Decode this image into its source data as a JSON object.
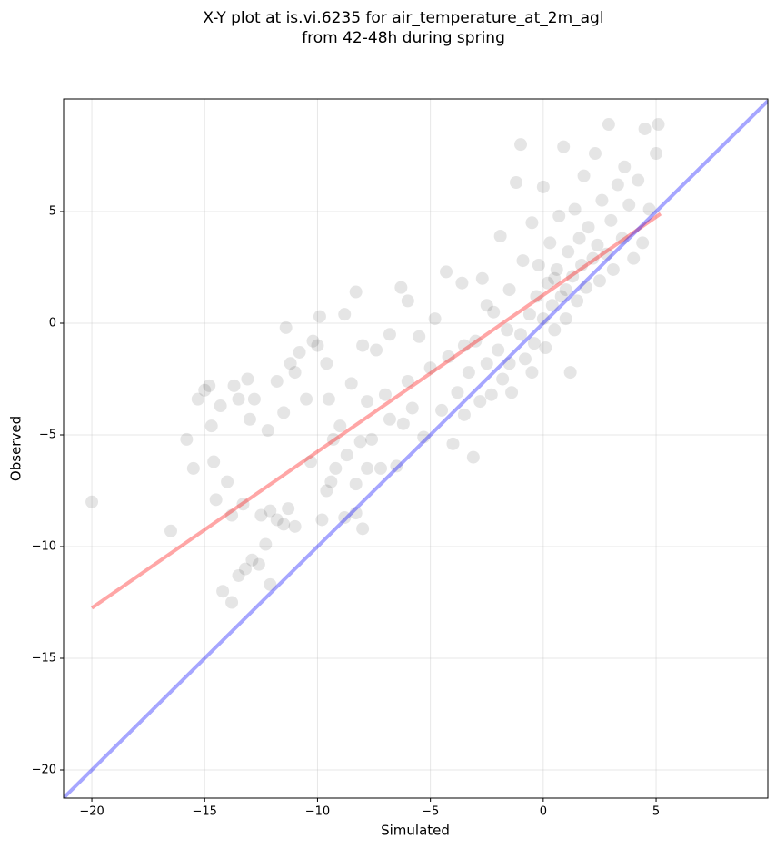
{
  "chart_data": {
    "type": "scatter",
    "title": [
      "X-Y plot at is.vi.6235 for air_temperature_at_2m_agl",
      "from 42-48h during spring"
    ],
    "x_label": "Simulated",
    "y_label": "Observed",
    "xlim": [
      -21.25,
      9.95
    ],
    "ylim": [
      -21.26,
      10.04
    ],
    "xticks": [
      {
        "value": -20,
        "label": "−20"
      },
      {
        "value": -15,
        "label": "−15"
      },
      {
        "value": -10,
        "label": "−10"
      },
      {
        "value": -5,
        "label": "−5"
      },
      0,
      5
    ],
    "yticks": [
      {
        "value": -20,
        "label": "−20"
      },
      {
        "value": -15,
        "label": "−15"
      },
      {
        "value": -10,
        "label": "−10"
      },
      {
        "value": -5,
        "label": "−5"
      },
      0,
      5
    ],
    "grid": true,
    "series": [
      {
        "color": "#000000",
        "x": [
          -20,
          -16.5,
          -15.8,
          -15.5,
          -15.3,
          -15,
          -14.8,
          -14.7,
          -14.6,
          -14.5,
          -14.3,
          -14,
          -13.8,
          -13.7,
          -13.5,
          -13.3,
          -13.1,
          -13,
          -12.8,
          -13.8,
          -14.2,
          -13.5,
          -13.2,
          -12.9,
          -12.6,
          -12.3,
          -12.1,
          -12.5,
          -12.1,
          -11.8,
          -11.5,
          -11.3,
          -11,
          -12.2,
          -11.8,
          -11.5,
          -11.2,
          -11,
          -11.4,
          -10.8,
          -10.5,
          -10.3,
          -10.2,
          -10,
          -9.9,
          -9.6,
          -9.5,
          -9.3,
          -9.8,
          -9.6,
          -9.4,
          -9.2,
          -9,
          -8.8,
          -8.7,
          -8.5,
          -8.3,
          -8.1,
          -8.3,
          -8,
          -8.8,
          -8.3,
          -8,
          -7.8,
          -7.6,
          -7.4,
          -7.2,
          -7,
          -6.8,
          -6.5,
          -6.3,
          -6.2,
          -6,
          -6,
          -5.8,
          -5.5,
          -5.3,
          -5,
          -4.8,
          -4.5,
          -4.3,
          -4.2,
          -4,
          -3.8,
          -3.6,
          -3.5,
          -3.3,
          -3.1,
          -3,
          -2.8,
          -2.7,
          -2.5,
          -2.3,
          -2.2,
          -2,
          -1.9,
          -1.8,
          -1.6,
          -1.5,
          -1.4,
          -1.2,
          -1,
          -1,
          -0.9,
          -0.8,
          -0.6,
          -0.5,
          -0.4,
          -0.3,
          -0.2,
          0,
          0,
          0.1,
          0.2,
          0.3,
          0.4,
          0.5,
          0.6,
          0.7,
          0.8,
          0.9,
          1,
          1.1,
          1.2,
          1.3,
          1.4,
          1.5,
          1.6,
          1.7,
          1.8,
          1.9,
          2,
          2.2,
          2.3,
          2.4,
          2.5,
          2.6,
          2.8,
          2.9,
          3,
          3.1,
          3.3,
          3.5,
          3.6,
          3.8,
          4,
          4.2,
          4.4,
          4.5,
          4.7,
          5,
          5.1,
          -3.5,
          -2.5,
          -1.5,
          -0.5,
          0.5,
          1,
          -6.8,
          -7.8
        ],
        "values": [
          -8,
          -9.3,
          -5.2,
          -6.5,
          -3.4,
          -3,
          -2.8,
          -4.6,
          -6.2,
          -7.9,
          -3.7,
          -7.1,
          -8.6,
          -2.8,
          -3.4,
          -8.1,
          -2.5,
          -4.3,
          -3.4,
          -12.5,
          -12,
          -11.3,
          -11,
          -10.6,
          -10.8,
          -9.9,
          -11.7,
          -8.6,
          -8.4,
          -8.8,
          -9,
          -8.3,
          -9.1,
          -4.8,
          -2.6,
          -4,
          -1.8,
          -2.2,
          -0.2,
          -1.3,
          -3.4,
          -6.2,
          -0.8,
          -1,
          0.3,
          -1.8,
          -3.4,
          -5.2,
          -8.8,
          -7.5,
          -7.1,
          -6.5,
          -4.6,
          -8.7,
          -5.9,
          -2.7,
          -7.2,
          -5.3,
          -8.5,
          -9.2,
          0.4,
          1.4,
          -1,
          -3.5,
          -5.2,
          -1.2,
          -6.5,
          -3.2,
          -0.5,
          -6.4,
          1.6,
          -4.5,
          -2.6,
          1,
          -3.8,
          -0.6,
          -5.1,
          -2,
          0.2,
          -3.9,
          2.3,
          -1.5,
          -5.4,
          -3.1,
          1.8,
          -4.1,
          -2.2,
          -6,
          -0.8,
          -3.5,
          2,
          -1.8,
          -3.2,
          0.5,
          -1.2,
          3.9,
          -2.5,
          -0.3,
          1.5,
          -3.1,
          6.3,
          8,
          -0.5,
          2.8,
          -1.6,
          0.4,
          4.5,
          -0.9,
          1.2,
          2.6,
          0.2,
          6.1,
          -1.1,
          1.8,
          3.6,
          0.8,
          -0.3,
          2.4,
          4.8,
          1.2,
          7.9,
          0.2,
          3.2,
          -2.2,
          2.1,
          5.1,
          1,
          3.8,
          2.6,
          6.6,
          1.6,
          4.3,
          2.9,
          7.6,
          3.5,
          1.9,
          5.5,
          3.1,
          8.9,
          4.6,
          2.4,
          6.2,
          3.8,
          7,
          5.3,
          2.9,
          6.4,
          3.6,
          8.7,
          5.1,
          7.6,
          8.9,
          -1,
          0.8,
          -1.8,
          -2.2,
          2,
          1.5,
          -4.3,
          -6.5
        ]
      }
    ],
    "lines": [
      {
        "color": "#ff0000",
        "x": [
          -20,
          5.2
        ],
        "values": [
          -12.75,
          4.9
        ]
      },
      {
        "color": "#0000ff",
        "x": [
          -21.25,
          9.95
        ],
        "values": [
          -21.25,
          9.95
        ]
      }
    ]
  }
}
